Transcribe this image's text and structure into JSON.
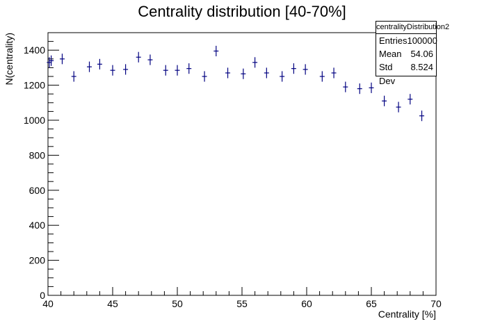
{
  "chart_data": {
    "type": "scatter",
    "title": "Centrality distribution [40-70%]",
    "xlabel": "Centrality [%]",
    "ylabel": "N(centrality)",
    "xlim": [
      40,
      70
    ],
    "ylim": [
      0,
      1500
    ],
    "x_ticks": [
      "40",
      "45",
      "50",
      "55",
      "60",
      "65",
      "70"
    ],
    "y_ticks": [
      "0",
      "200",
      "400",
      "600",
      "800",
      "1000",
      "1200",
      "1400"
    ],
    "grid": false,
    "marker_color": "#000080",
    "series": [
      {
        "x": [
          40.1,
          40.25,
          41.1,
          42.0,
          43.2,
          44.0,
          45.0,
          46.0,
          47.0,
          47.9,
          49.1,
          50.0,
          50.9,
          52.1,
          53.0,
          53.9,
          55.1,
          56.0,
          56.9,
          58.1,
          59.0,
          59.9,
          61.2,
          62.1,
          63.0,
          64.1,
          65.0,
          66.0,
          67.1,
          68.0,
          68.9
        ],
        "y": [
          1330,
          1340,
          1350,
          1250,
          1305,
          1320,
          1285,
          1290,
          1360,
          1345,
          1285,
          1285,
          1295,
          1250,
          1395,
          1270,
          1265,
          1330,
          1270,
          1250,
          1295,
          1290,
          1250,
          1270,
          1190,
          1180,
          1185,
          1110,
          1075,
          1120,
          1025
        ],
        "err": [
          30,
          30,
          30,
          30,
          30,
          30,
          30,
          30,
          30,
          30,
          30,
          30,
          30,
          30,
          30,
          30,
          30,
          30,
          30,
          30,
          30,
          30,
          30,
          30,
          30,
          30,
          30,
          30,
          30,
          30,
          30
        ]
      }
    ]
  },
  "stats": {
    "name": "centralityDistribution2",
    "entries_label": "Entries",
    "entries": "100000",
    "mean_label": "Mean",
    "mean": "54.06",
    "std_label": "Std Dev",
    "std": "8.524"
  }
}
